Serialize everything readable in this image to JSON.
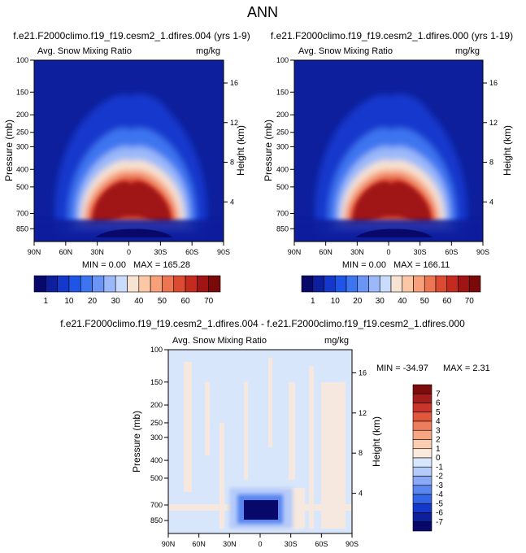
{
  "title": "ANN",
  "colors": {
    "field_scale": [
      "#08086b",
      "#0d1f9c",
      "#1538cc",
      "#1f55e6",
      "#3d74f0",
      "#6a95f5",
      "#9ab8fa",
      "#c9dcfc",
      "#f6e3d2",
      "#fbc7a4",
      "#f7a07a",
      "#ee7552",
      "#dd4a32",
      "#c42a1e",
      "#a01414",
      "#7a0a0a"
    ],
    "diff_scale": [
      "#08086b",
      "#0d1f9c",
      "#1538cc",
      "#3366e6",
      "#5a86f0",
      "#8aaaf6",
      "#b5cbfa",
      "#d7e6fb",
      "#fbe9dc",
      "#fbcdb0",
      "#f6a682",
      "#ee7d5d",
      "#e0573c",
      "#c9352a",
      "#a51c1c",
      "#7d0d0d"
    ]
  },
  "chart_data": [
    {
      "type": "heatmap",
      "name": "left-panel",
      "case_title": "f.e21.F2000climo.f19_f19.cesm2_1.dfires.004 (yrs 1-9)",
      "left_label": "Avg. Snow Mixing Ratio",
      "right_label": "mg/kg",
      "ylabel": "Pressure (mb)",
      "ylabel_right": "Height (km)",
      "x_ticks": [
        "90N",
        "60N",
        "30N",
        "0",
        "30S",
        "60S",
        "90S"
      ],
      "x_tick_values": [
        90,
        60,
        30,
        0,
        -30,
        -60,
        -90
      ],
      "y_ticks": [
        "100",
        "150",
        "200",
        "250",
        "300",
        "400",
        "500",
        "700",
        "850"
      ],
      "y_tick_values": [
        100,
        150,
        200,
        250,
        300,
        400,
        500,
        700,
        850
      ],
      "height_ticks": [
        "16",
        "12",
        "8",
        "4"
      ],
      "height_tick_values": [
        16,
        12,
        8,
        4
      ],
      "xlim": [
        90,
        -90
      ],
      "ylim": [
        1000,
        100
      ],
      "min_label": "MIN =   0.00",
      "max_label": "MAX = 165.28",
      "min": 0.0,
      "max": 165.28
    },
    {
      "type": "heatmap",
      "name": "right-panel",
      "case_title": "f.e21.F2000climo.f19_f19.cesm2_1.dfires.000 (yrs 1-19)",
      "left_label": "Avg. Snow Mixing Ratio",
      "right_label": "mg/kg",
      "ylabel": "Pressure (mb)",
      "ylabel_right": "Height (km)",
      "x_ticks": [
        "90N",
        "60N",
        "30N",
        "0",
        "30S",
        "60S",
        "90S"
      ],
      "x_tick_values": [
        90,
        60,
        30,
        0,
        -30,
        -60,
        -90
      ],
      "y_ticks": [
        "100",
        "150",
        "200",
        "250",
        "300",
        "400",
        "500",
        "700",
        "850"
      ],
      "y_tick_values": [
        100,
        150,
        200,
        250,
        300,
        400,
        500,
        700,
        850
      ],
      "height_ticks": [
        "16",
        "12",
        "8",
        "4"
      ],
      "height_tick_values": [
        16,
        12,
        8,
        4
      ],
      "xlim": [
        90,
        -90
      ],
      "ylim": [
        1000,
        100
      ],
      "min_label": "MIN =   0.00",
      "max_label": "MAX = 166.11",
      "min": 0.0,
      "max": 166.11
    },
    {
      "type": "heatmap",
      "name": "difference-panel",
      "case_title": "f.e21.F2000climo.f19_f19.cesm2_1.dfires.004 - f.e21.F2000climo.f19_f19.cesm2_1.dfires.000",
      "left_label": "Avg. Snow Mixing Ratio",
      "right_label": "mg/kg",
      "ylabel": "Pressure (mb)",
      "ylabel_right": "Height (km)",
      "x_ticks": [
        "90N",
        "60N",
        "30N",
        "0",
        "30S",
        "60S",
        "90S"
      ],
      "x_tick_values": [
        90,
        60,
        30,
        0,
        -30,
        -60,
        -90
      ],
      "y_ticks": [
        "100",
        "150",
        "200",
        "250",
        "300",
        "400",
        "500",
        "700",
        "850"
      ],
      "y_tick_values": [
        100,
        150,
        200,
        250,
        300,
        400,
        500,
        700,
        850
      ],
      "height_ticks": [
        "16",
        "12",
        "8",
        "4"
      ],
      "height_tick_values": [
        16,
        12,
        8,
        4
      ],
      "xlim": [
        90,
        -90
      ],
      "ylim": [
        1000,
        100
      ],
      "min_label": "MIN = -34.97",
      "max_label": "MAX =   2.31",
      "min": -34.97,
      "max": 2.31
    }
  ],
  "field_colorbar": {
    "labels": [
      "1",
      "10",
      "20",
      "30",
      "40",
      "50",
      "60",
      "70"
    ],
    "levels": [
      1,
      10,
      20,
      30,
      40,
      50,
      60,
      70
    ]
  },
  "diff_colorbar": {
    "labels": [
      "7",
      "6",
      "5",
      "4",
      "3",
      "2",
      "1",
      "0",
      "-1",
      "-2",
      "-3",
      "-4",
      "-5",
      "-6",
      "-7"
    ],
    "levels": [
      7,
      6,
      5,
      4,
      3,
      2,
      1,
      0,
      -1,
      -2,
      -3,
      -4,
      -5,
      -6,
      -7
    ]
  }
}
